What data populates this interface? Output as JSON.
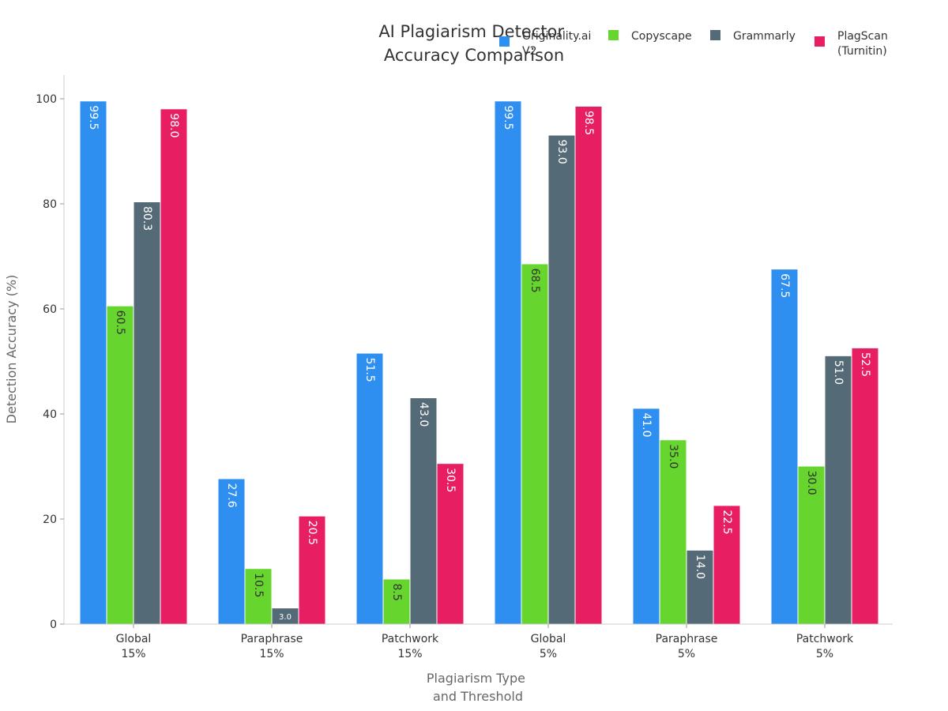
{
  "chart_data": {
    "type": "bar",
    "title": [
      "AI Plagiarism Detector",
      "Accuracy Comparison"
    ],
    "xlabel": [
      "Plagiarism Type",
      "and Threshold"
    ],
    "ylabel": "Detection Accuracy (%)",
    "ylim": [
      0,
      105
    ],
    "yticks": [
      0,
      20,
      40,
      60,
      80,
      100
    ],
    "ytick_labels": [
      "0",
      "20",
      "40",
      "60",
      "80",
      "100"
    ],
    "categories": [
      [
        "Global",
        "15%"
      ],
      [
        "Paraphrase",
        "15%"
      ],
      [
        "Patchwork",
        "15%"
      ],
      [
        "Global",
        "5%"
      ],
      [
        "Paraphrase",
        "5%"
      ],
      [
        "Patchwork",
        "5%"
      ]
    ],
    "series": [
      {
        "name": [
          "Originality.ai",
          "V2"
        ],
        "color": "#2f8ff0",
        "label_color": "#ffffff",
        "values": [
          99.5,
          27.6,
          51.5,
          99.5,
          41.0,
          67.5
        ],
        "labels": [
          "99.5",
          "27.6",
          "51.5",
          "99.5",
          "41.0",
          "67.5"
        ]
      },
      {
        "name": [
          "Copyscape"
        ],
        "color": "#66d62e",
        "label_color": "#333333",
        "values": [
          60.5,
          10.5,
          8.5,
          68.5,
          35.0,
          30.0
        ],
        "labels": [
          "60.5",
          "10.5",
          "8.5",
          "68.5",
          "35.0",
          "30.0"
        ]
      },
      {
        "name": [
          "Grammarly"
        ],
        "color": "#546a76",
        "label_color": "#ffffff",
        "values": [
          80.3,
          3.0,
          43.0,
          93.0,
          14.0,
          51.0
        ],
        "labels": [
          "80.3",
          "3.0",
          "43.0",
          "93.0",
          "14.0",
          "51.0"
        ]
      },
      {
        "name": [
          "PlagScan",
          "(Turnitin)"
        ],
        "color": "#e81e63",
        "label_color": "#ffffff",
        "values": [
          98.0,
          20.5,
          30.5,
          98.5,
          22.5,
          52.5
        ],
        "labels": [
          "98.0",
          "20.5",
          "30.5",
          "98.5",
          "22.5",
          "52.5"
        ]
      }
    ],
    "legend_position": "top-right",
    "grid": false
  }
}
